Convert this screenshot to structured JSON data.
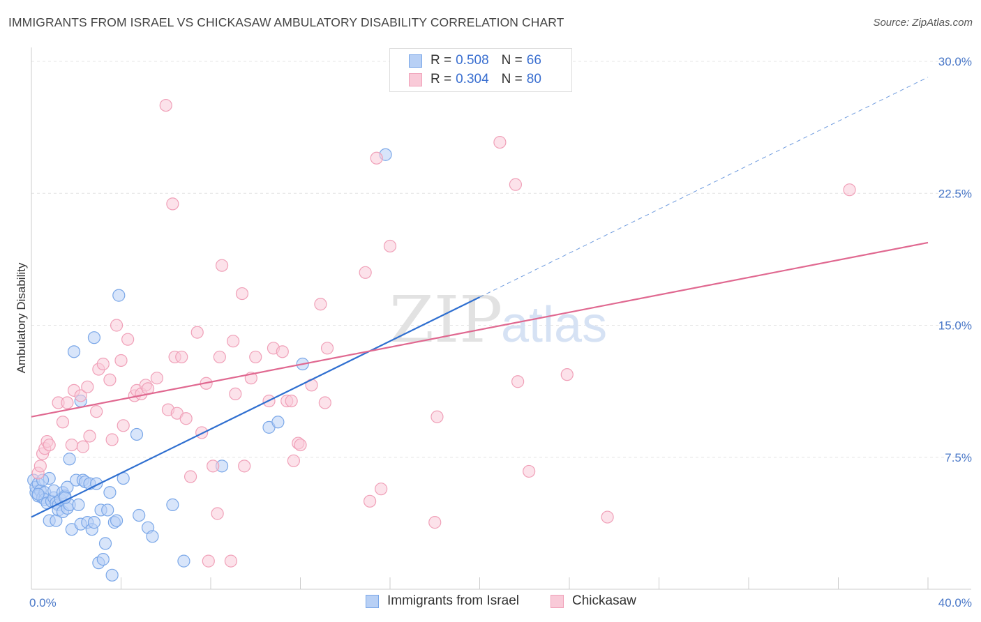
{
  "title": "IMMIGRANTS FROM ISRAEL VS CHICKASAW AMBULATORY DISABILITY CORRELATION CHART",
  "source": "Source: ZipAtlas.com",
  "watermark": {
    "zip": "ZIP",
    "atlas": "atlas"
  },
  "legend": {
    "rows": [
      {
        "r_label": "R =",
        "r_value": "0.508",
        "n_label": "N =",
        "n_value": "66",
        "color": "#7aa7e8",
        "fill": "#b8d0f5"
      },
      {
        "r_label": "R =",
        "r_value": "0.304",
        "n_label": "N =",
        "n_value": "80",
        "color": "#f0a0b8",
        "fill": "#f9cad8"
      }
    ]
  },
  "bottom_legend": [
    {
      "label": "Immigrants from Israel",
      "color": "#7aa7e8",
      "fill": "#b8d0f5"
    },
    {
      "label": "Chickasaw",
      "color": "#f0a0b8",
      "fill": "#f9cad8"
    }
  ],
  "chart_data": {
    "type": "scatter",
    "xlabel": "",
    "ylabel": "Ambulatory Disability",
    "xlim": [
      0,
      40
    ],
    "ylim": [
      0,
      30
    ],
    "x_tick_labels": [
      "0.0%",
      "40.0%"
    ],
    "y_ticks": [
      7.5,
      15.0,
      22.5,
      30.0
    ],
    "y_tick_labels": [
      "7.5%",
      "15.0%",
      "22.5%",
      "30.0%"
    ],
    "grid": true,
    "legend_position": "top-center",
    "series": [
      {
        "name": "Immigrants from Israel",
        "color": "#7aa7e8",
        "line_color": "#2f6fd0",
        "trend": {
          "x": [
            0,
            20
          ],
          "y": [
            4.1,
            16.6
          ],
          "dashed_to": [
            40,
            29.1
          ]
        },
        "points": [
          [
            0.1,
            6.2
          ],
          [
            0.2,
            5.5
          ],
          [
            0.2,
            5.8
          ],
          [
            0.3,
            5.3
          ],
          [
            0.3,
            6.0
          ],
          [
            0.4,
            5.6
          ],
          [
            0.5,
            5.2
          ],
          [
            0.6,
            5.5
          ],
          [
            0.6,
            5.1
          ],
          [
            0.7,
            4.9
          ],
          [
            0.8,
            3.9
          ],
          [
            0.8,
            6.3
          ],
          [
            0.9,
            5.0
          ],
          [
            1.0,
            5.2
          ],
          [
            1.0,
            5.6
          ],
          [
            1.1,
            3.9
          ],
          [
            1.1,
            4.9
          ],
          [
            1.2,
            4.8
          ],
          [
            1.2,
            4.5
          ],
          [
            1.3,
            5.1
          ],
          [
            1.4,
            4.4
          ],
          [
            1.4,
            5.5
          ],
          [
            1.5,
            5.3
          ],
          [
            1.6,
            4.6
          ],
          [
            1.6,
            5.8
          ],
          [
            1.7,
            4.8
          ],
          [
            1.7,
            7.4
          ],
          [
            1.8,
            3.4
          ],
          [
            1.9,
            13.5
          ],
          [
            2.0,
            6.2
          ],
          [
            2.1,
            4.8
          ],
          [
            2.2,
            3.7
          ],
          [
            2.3,
            6.2
          ],
          [
            2.4,
            6.1
          ],
          [
            2.5,
            3.8
          ],
          [
            2.6,
            6.0
          ],
          [
            2.7,
            3.4
          ],
          [
            2.8,
            3.8
          ],
          [
            2.9,
            6.0
          ],
          [
            3.0,
            1.5
          ],
          [
            3.1,
            4.5
          ],
          [
            3.2,
            1.7
          ],
          [
            3.3,
            2.6
          ],
          [
            3.4,
            4.5
          ],
          [
            3.5,
            5.5
          ],
          [
            3.6,
            0.8
          ],
          [
            3.7,
            3.8
          ],
          [
            3.8,
            3.9
          ],
          [
            3.9,
            16.7
          ],
          [
            4.1,
            6.3
          ],
          [
            4.7,
            8.8
          ],
          [
            4.8,
            4.2
          ],
          [
            5.2,
            3.5
          ],
          [
            5.4,
            3.0
          ],
          [
            6.3,
            4.8
          ],
          [
            6.8,
            1.6
          ],
          [
            2.2,
            10.7
          ],
          [
            2.8,
            14.3
          ],
          [
            8.5,
            7.0
          ],
          [
            10.6,
            9.2
          ],
          [
            11.0,
            9.5
          ],
          [
            12.1,
            12.8
          ],
          [
            15.8,
            24.7
          ],
          [
            0.5,
            6.2
          ],
          [
            0.3,
            5.4
          ],
          [
            1.5,
            5.2
          ]
        ]
      },
      {
        "name": "Chickasaw",
        "color": "#f0a0b8",
        "line_color": "#e06890",
        "trend": {
          "x": [
            0,
            40
          ],
          "y": [
            9.8,
            19.7
          ]
        },
        "points": [
          [
            0.3,
            6.6
          ],
          [
            0.4,
            7.0
          ],
          [
            0.5,
            7.7
          ],
          [
            0.6,
            8.0
          ],
          [
            0.7,
            8.4
          ],
          [
            0.8,
            8.2
          ],
          [
            1.2,
            10.6
          ],
          [
            1.4,
            9.5
          ],
          [
            1.6,
            10.6
          ],
          [
            1.8,
            8.2
          ],
          [
            1.9,
            11.3
          ],
          [
            2.2,
            11.0
          ],
          [
            2.3,
            8.1
          ],
          [
            2.5,
            11.5
          ],
          [
            2.6,
            8.7
          ],
          [
            2.9,
            10.1
          ],
          [
            3.0,
            12.5
          ],
          [
            3.2,
            12.8
          ],
          [
            3.5,
            11.9
          ],
          [
            3.6,
            8.5
          ],
          [
            3.8,
            15.0
          ],
          [
            4.0,
            13.0
          ],
          [
            4.1,
            9.3
          ],
          [
            4.3,
            14.2
          ],
          [
            4.6,
            11.0
          ],
          [
            4.7,
            11.3
          ],
          [
            4.9,
            11.1
          ],
          [
            5.1,
            11.6
          ],
          [
            5.2,
            11.4
          ],
          [
            5.6,
            12.0
          ],
          [
            6.0,
            27.5
          ],
          [
            6.1,
            10.2
          ],
          [
            6.3,
            21.9
          ],
          [
            6.4,
            13.2
          ],
          [
            6.5,
            10.0
          ],
          [
            6.7,
            13.2
          ],
          [
            6.9,
            9.7
          ],
          [
            7.1,
            6.4
          ],
          [
            7.4,
            14.6
          ],
          [
            7.6,
            8.9
          ],
          [
            7.8,
            11.7
          ],
          [
            7.9,
            1.6
          ],
          [
            8.1,
            7.0
          ],
          [
            8.3,
            4.3
          ],
          [
            8.5,
            18.4
          ],
          [
            8.4,
            13.2
          ],
          [
            8.9,
            1.6
          ],
          [
            9.0,
            14.1
          ],
          [
            9.1,
            11.1
          ],
          [
            9.4,
            16.8
          ],
          [
            9.5,
            7.0
          ],
          [
            9.8,
            12.0
          ],
          [
            10.0,
            13.2
          ],
          [
            10.6,
            10.7
          ],
          [
            10.8,
            13.7
          ],
          [
            11.2,
            13.5
          ],
          [
            11.4,
            10.7
          ],
          [
            11.6,
            10.7
          ],
          [
            11.9,
            8.3
          ],
          [
            12.0,
            8.2
          ],
          [
            12.5,
            11.6
          ],
          [
            12.9,
            16.2
          ],
          [
            13.1,
            10.6
          ],
          [
            13.2,
            13.7
          ],
          [
            14.9,
            18.0
          ],
          [
            15.1,
            5.0
          ],
          [
            15.4,
            24.5
          ],
          [
            15.6,
            5.7
          ],
          [
            16.0,
            19.5
          ],
          [
            16.4,
            29.7
          ],
          [
            18.0,
            3.8
          ],
          [
            18.1,
            9.8
          ],
          [
            20.9,
            25.4
          ],
          [
            21.6,
            23.0
          ],
          [
            21.7,
            11.8
          ],
          [
            22.2,
            6.7
          ],
          [
            23.9,
            12.2
          ],
          [
            25.7,
            4.1
          ],
          [
            36.5,
            22.7
          ],
          [
            11.7,
            7.3
          ]
        ]
      }
    ]
  }
}
